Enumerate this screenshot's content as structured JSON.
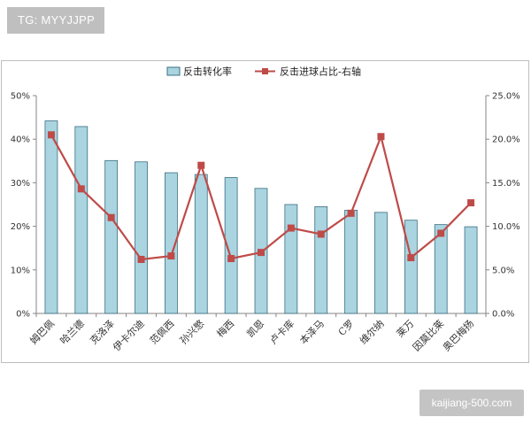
{
  "badge": {
    "text": "TG: MYYJJPP"
  },
  "watermark": {
    "text": "kaijiang-500.com"
  },
  "chart_data": {
    "type": "bar",
    "title": "",
    "xlabel": "",
    "ylabel": "",
    "categories": [
      "姆巴佩",
      "哈兰德",
      "克洛泽",
      "伊卡尔迪",
      "范佩西",
      "孙兴慜",
      "梅西",
      "凯恩",
      "卢卡库",
      "本泽马",
      "C罗",
      "维尔纳",
      "莱万",
      "因莫比莱",
      "奥巴梅扬"
    ],
    "series": [
      {
        "name": "反击转化率",
        "type": "bar",
        "axis": "left",
        "color": "#a9d4e0",
        "values": [
          44.2,
          42.9,
          35.1,
          34.8,
          32.3,
          31.9,
          31.2,
          28.7,
          25.0,
          24.5,
          23.7,
          23.2,
          21.4,
          20.4,
          19.9
        ]
      },
      {
        "name": "反击进球占比-右轴",
        "type": "line",
        "axis": "right",
        "color": "#be4b48",
        "values": [
          20.5,
          14.3,
          11.0,
          6.2,
          6.6,
          17.0,
          6.3,
          7.0,
          9.8,
          9.1,
          11.5,
          20.3,
          6.4,
          9.2,
          12.7
        ]
      }
    ],
    "ylim_left": [
      0,
      50
    ],
    "ylim_right": [
      0,
      25
    ],
    "yticks_left": [
      "0%",
      "10%",
      "20%",
      "30%",
      "40%",
      "50%"
    ],
    "yticks_right": [
      "0.0%",
      "5.0%",
      "10.0%",
      "15.0%",
      "20.0%",
      "25.0%"
    ],
    "legend_position": "top-center",
    "grid": false
  }
}
